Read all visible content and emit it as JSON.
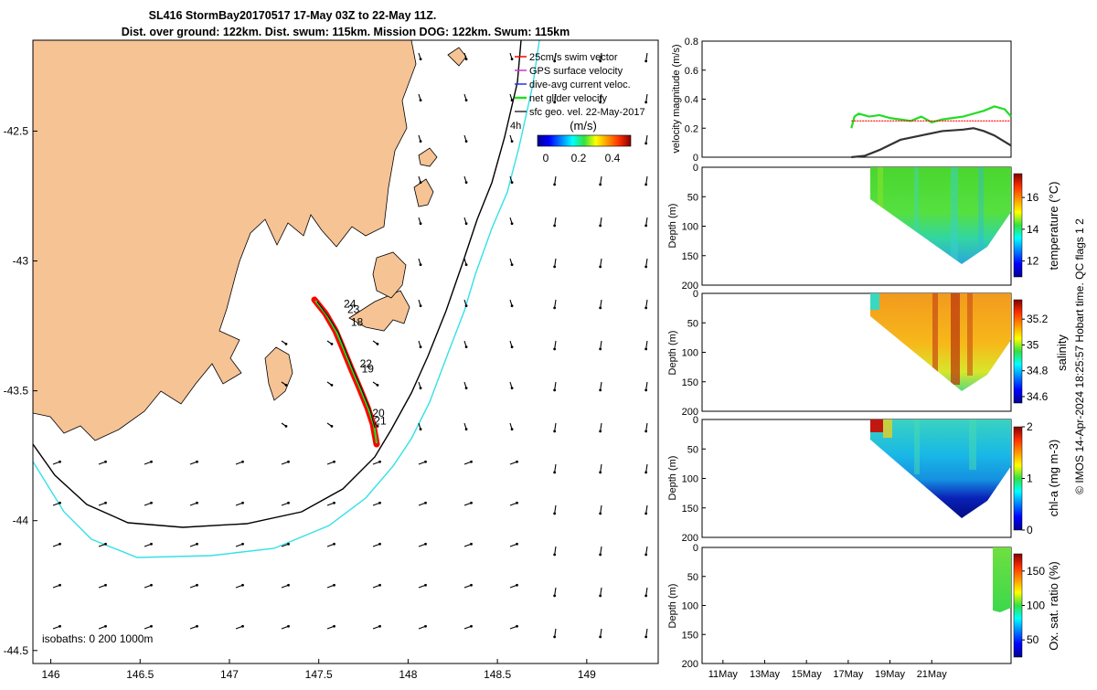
{
  "header": {
    "title_line1": "SL416 StormBay20170517 17-May 03Z to 22-May 11Z.",
    "title_line2": "Dist. over ground: 122km. Dist. swum: 115km. Mission DOG: 122km. Swum: 115km"
  },
  "credit": "© IMOS 14-Apr-2024 18:25:57 Hobart time. QC flags 1  2",
  "colors": {
    "land": "#f6c395",
    "isobath_200": "#000000",
    "isobath_1000": "#33e1e6",
    "track": "#ff0000",
    "net_velocity": "#22dd22"
  },
  "chart_data": [
    {
      "type": "map",
      "xlim": [
        145.9,
        149.4
      ],
      "ylim": [
        -44.55,
        -42.15
      ],
      "x_ticks": [
        "146",
        "146.5",
        "147",
        "147.5",
        "148",
        "148.5",
        "149"
      ],
      "y_ticks": [
        "-42.5",
        "-43",
        "-43.5",
        "-44",
        "-44.5"
      ],
      "legend": {
        "placement": "top-right",
        "entries": [
          "25cm/s swim vector",
          "GPS surface velocity",
          "dive-avg current veloc.",
          "net glider velocity",
          "sfc geo. vel. 22-May-2017",
          "4h"
        ]
      },
      "colorbar": {
        "label": "(m/s)",
        "ticks": [
          "0",
          "0.2",
          "0.4"
        ],
        "range": [
          0,
          0.5
        ],
        "colormap": "jet"
      },
      "isobath_note": "isobaths: 0   200  1000m",
      "day_labels": [
        {
          "text": "24",
          "lon": 147.64,
          "lat": -43.18
        },
        {
          "text": "23",
          "lon": 147.66,
          "lat": -43.2
        },
        {
          "text": "18",
          "lon": 147.68,
          "lat": -43.25
        },
        {
          "text": "22",
          "lon": 147.73,
          "lat": -43.41
        },
        {
          "text": "19",
          "lon": 147.74,
          "lat": -43.43
        },
        {
          "text": "20",
          "lon": 147.8,
          "lat": -43.6
        },
        {
          "text": "21",
          "lon": 147.81,
          "lat": -43.63
        }
      ],
      "glider_track": [
        [
          147.46,
          -43.1
        ],
        [
          147.52,
          -43.15
        ],
        [
          147.57,
          -43.22
        ],
        [
          147.61,
          -43.3
        ],
        [
          147.65,
          -43.37
        ],
        [
          147.68,
          -43.42
        ],
        [
          147.71,
          -43.47
        ],
        [
          147.74,
          -43.53
        ],
        [
          147.78,
          -43.6
        ],
        [
          147.81,
          -43.66
        ]
      ]
    },
    {
      "type": "line",
      "ylabel": "velocity magnitude (m/s)",
      "ylim": [
        0,
        0.8
      ],
      "y_ticks": [
        "0",
        "0.2",
        "0.4",
        "0.6",
        "0.8"
      ],
      "x_day_range": [
        10,
        24.8
      ],
      "series": [
        {
          "color": "#22dd22",
          "x": [
            17.15,
            17.3,
            17.5,
            18,
            18.5,
            19,
            19.5,
            20,
            20.5,
            21,
            21.5,
            22,
            22.5,
            23,
            23.5,
            24,
            24.5,
            24.8
          ],
          "values": [
            0.2,
            0.28,
            0.3,
            0.28,
            0.29,
            0.27,
            0.26,
            0.25,
            0.28,
            0.24,
            0.26,
            0.27,
            0.28,
            0.3,
            0.32,
            0.35,
            0.33,
            0.28
          ]
        },
        {
          "color": "#ff0000",
          "x": [
            17.15,
            24.8
          ],
          "values": [
            0.25,
            0.25
          ]
        },
        {
          "color": "#333333",
          "x": [
            17.15,
            17.8,
            18.5,
            19.5,
            20.5,
            21.5,
            22.5,
            23,
            23.5,
            24,
            24.8
          ],
          "values": [
            0.0,
            0.01,
            0.05,
            0.12,
            0.15,
            0.18,
            0.19,
            0.2,
            0.18,
            0.15,
            0.08
          ]
        }
      ]
    },
    {
      "type": "heatmap",
      "ylabel": "Depth (m)",
      "cbar_label": "temperature (°C)",
      "y_ticks": [
        "0",
        "50",
        "100",
        "150",
        "200"
      ],
      "cbar_ticks": [
        "12",
        "14",
        "16"
      ],
      "cbar_range": [
        11,
        17.5
      ]
    },
    {
      "type": "heatmap",
      "ylabel": "Depth (m)",
      "cbar_label": "salinity",
      "y_ticks": [
        "0",
        "50",
        "100",
        "150",
        "200"
      ],
      "cbar_ticks": [
        "34.6",
        "34.8",
        "35",
        "35.2"
      ],
      "cbar_range": [
        34.55,
        35.35
      ]
    },
    {
      "type": "heatmap",
      "ylabel": "Depth (m)",
      "cbar_label": "chl-a (mg m-3)",
      "y_ticks": [
        "0",
        "50",
        "100",
        "150",
        "200"
      ],
      "cbar_ticks": [
        "0",
        "1",
        "2"
      ],
      "cbar_range": [
        0,
        2
      ]
    },
    {
      "type": "heatmap",
      "ylabel": "Depth (m)",
      "cbar_label": "Ox. sat. ratio (%)",
      "y_ticks": [
        "0",
        "50",
        "100",
        "150",
        "200"
      ],
      "cbar_ticks": [
        "50",
        "100",
        "150"
      ],
      "cbar_range": [
        25,
        175
      ],
      "x_ticks": [
        "11May",
        "13May",
        "15May",
        "17May",
        "19May",
        "21May"
      ]
    }
  ]
}
